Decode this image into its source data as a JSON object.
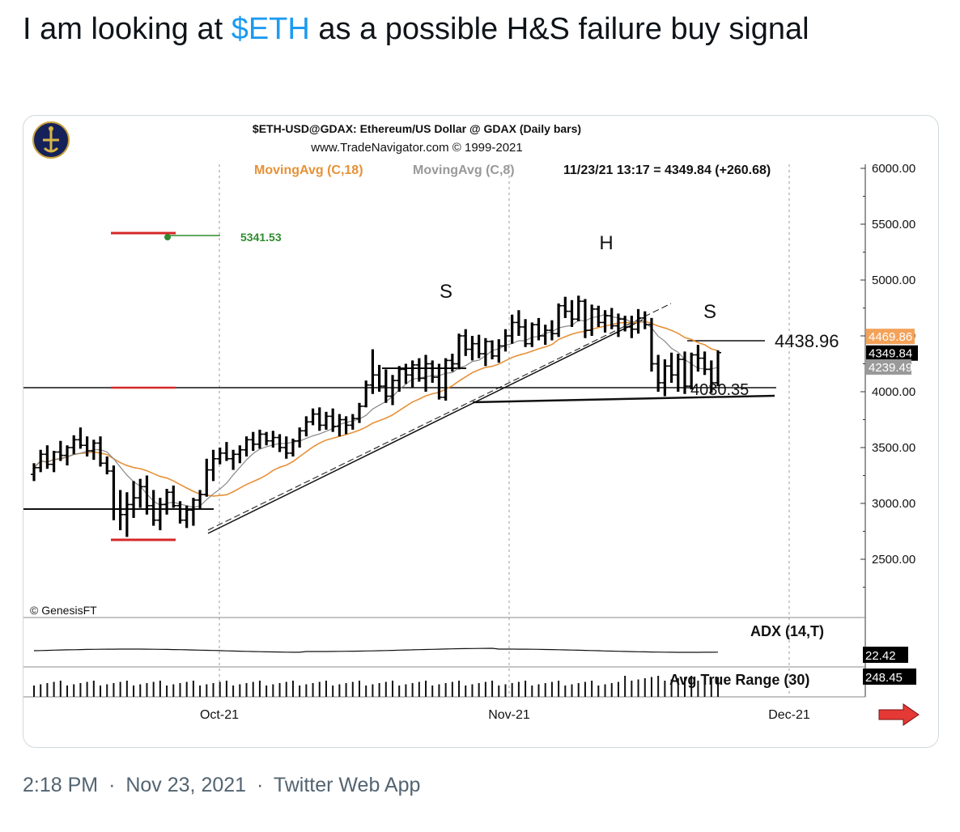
{
  "tweet": {
    "text_prefix": "I am looking at ",
    "cashtag": "$ETH",
    "text_suffix": " as a possible H&S failure buy signal",
    "time": "2:18 PM",
    "date": "Nov 23, 2021",
    "source": "Twitter Web App",
    "separator": "·"
  },
  "colors": {
    "cashtag": "#1d9bf0",
    "ma18": "#e69138",
    "ma8": "#888888",
    "level_red": "#d62828",
    "level_green": "#2e8b2e",
    "arrow": "#e53935"
  },
  "chart_data": {
    "type": "bar",
    "title": "$ETH-USD@GDAX:  Ethereum/US Dollar @ GDAX  (Daily bars)",
    "subtitle": "www.TradeNavigator.com © 1999-2021",
    "legend": {
      "ma18": "MovingAvg (C,18)",
      "ma8": "MovingAvg (C,8)",
      "last": "11/23/21 13:17 = 4349.84 (+260.68)"
    },
    "copyright": "© GenesisFT",
    "ylim": [
      2000,
      6100
    ],
    "yticks": [
      "6000.00",
      "5500.00",
      "5000.00",
      "4500.00",
      "4000.00",
      "3500.00",
      "3000.00",
      "2500.00"
    ],
    "ytick_values": [
      6000,
      5500,
      5000,
      4500,
      4000,
      3500,
      3000,
      2500
    ],
    "xticks": [
      "Oct-21",
      "Nov-21",
      "Dec-21"
    ],
    "pattern_labels": {
      "left_shoulder": "S",
      "head": "H",
      "right_shoulder": "S"
    },
    "levels": {
      "target": "5341.53",
      "neckline_high": "4438.96",
      "neckline_low": "4030.35"
    },
    "price_tags": {
      "ma18": "4469.86",
      "last": "4349.84",
      "ma8": "4239.49"
    },
    "indicators": [
      {
        "name": "ADX (14,T)",
        "value": "22.42"
      },
      {
        "name": "Avg True Range (30)",
        "value": "248.45"
      }
    ],
    "ohlc": [
      [
        3260,
        3360,
        3200,
        3320
      ],
      [
        3320,
        3480,
        3280,
        3440
      ],
      [
        3440,
        3520,
        3310,
        3350
      ],
      [
        3350,
        3470,
        3280,
        3460
      ],
      [
        3460,
        3560,
        3380,
        3430
      ],
      [
        3430,
        3520,
        3340,
        3500
      ],
      [
        3500,
        3610,
        3440,
        3570
      ],
      [
        3570,
        3680,
        3490,
        3520
      ],
      [
        3520,
        3600,
        3420,
        3470
      ],
      [
        3470,
        3570,
        3390,
        3540
      ],
      [
        3540,
        3600,
        3330,
        3360
      ],
      [
        3360,
        3420,
        3260,
        3290
      ],
      [
        3290,
        3340,
        2850,
        2950
      ],
      [
        2950,
        3120,
        2760,
        2900
      ],
      [
        2900,
        3100,
        2700,
        2990
      ],
      [
        2990,
        3200,
        2870,
        3050
      ],
      [
        3050,
        3220,
        2960,
        3150
      ],
      [
        3150,
        3250,
        2900,
        2980
      ],
      [
        2980,
        3120,
        2800,
        2850
      ],
      [
        2850,
        3050,
        2760,
        2990
      ],
      [
        2990,
        3130,
        2900,
        3100
      ],
      [
        3100,
        3160,
        2960,
        2980
      ],
      [
        2980,
        3020,
        2820,
        2850
      ],
      [
        2850,
        2980,
        2780,
        2940
      ],
      [
        2940,
        3050,
        2800,
        3030
      ],
      [
        3030,
        3120,
        2950,
        3080
      ],
      [
        3080,
        3400,
        3060,
        3300
      ],
      [
        3300,
        3480,
        3200,
        3400
      ],
      [
        3400,
        3500,
        3350,
        3450
      ],
      [
        3450,
        3550,
        3380,
        3400
      ],
      [
        3400,
        3480,
        3300,
        3440
      ],
      [
        3440,
        3520,
        3360,
        3480
      ],
      [
        3480,
        3600,
        3420,
        3570
      ],
      [
        3570,
        3640,
        3470,
        3530
      ],
      [
        3530,
        3660,
        3490,
        3620
      ],
      [
        3620,
        3640,
        3520,
        3560
      ],
      [
        3560,
        3650,
        3500,
        3590
      ],
      [
        3590,
        3620,
        3460,
        3500
      ],
      [
        3500,
        3600,
        3400,
        3450
      ],
      [
        3450,
        3580,
        3420,
        3560
      ],
      [
        3560,
        3680,
        3500,
        3650
      ],
      [
        3650,
        3780,
        3600,
        3730
      ],
      [
        3730,
        3850,
        3700,
        3800
      ],
      [
        3800,
        3860,
        3650,
        3700
      ],
      [
        3700,
        3820,
        3660,
        3780
      ],
      [
        3780,
        3850,
        3640,
        3690
      ],
      [
        3690,
        3800,
        3600,
        3750
      ],
      [
        3750,
        3780,
        3620,
        3700
      ],
      [
        3700,
        3800,
        3660,
        3760
      ],
      [
        3760,
        3900,
        3720,
        3870
      ],
      [
        3870,
        4100,
        3860,
        4060
      ],
      [
        4060,
        4380,
        3980,
        4150
      ],
      [
        4150,
        4240,
        4000,
        4050
      ],
      [
        4050,
        4200,
        3900,
        3960
      ],
      [
        3960,
        4150,
        3880,
        4100
      ],
      [
        4100,
        4230,
        4000,
        4200
      ],
      [
        4200,
        4250,
        4070,
        4150
      ],
      [
        4150,
        4280,
        4040,
        4240
      ],
      [
        4240,
        4300,
        4090,
        4120
      ],
      [
        4120,
        4330,
        4000,
        4250
      ],
      [
        4250,
        4280,
        4080,
        4130
      ],
      [
        4130,
        4250,
        3930,
        3950
      ],
      [
        3950,
        4300,
        3920,
        4280
      ],
      [
        4280,
        4340,
        4180,
        4250
      ],
      [
        4250,
        4520,
        4200,
        4500
      ],
      [
        4500,
        4560,
        4320,
        4380
      ],
      [
        4380,
        4500,
        4280,
        4430
      ],
      [
        4430,
        4510,
        4300,
        4340
      ],
      [
        4340,
        4480,
        4230,
        4450
      ],
      [
        4450,
        4460,
        4290,
        4320
      ],
      [
        4320,
        4470,
        4260,
        4410
      ],
      [
        4410,
        4560,
        4360,
        4500
      ],
      [
        4500,
        4690,
        4430,
        4620
      ],
      [
        4620,
        4730,
        4500,
        4580
      ],
      [
        4580,
        4650,
        4400,
        4430
      ],
      [
        4430,
        4620,
        4400,
        4600
      ],
      [
        4600,
        4660,
        4460,
        4500
      ],
      [
        4500,
        4600,
        4420,
        4550
      ],
      [
        4550,
        4640,
        4460,
        4520
      ],
      [
        4520,
        4790,
        4490,
        4770
      ],
      [
        4770,
        4850,
        4660,
        4720
      ],
      [
        4720,
        4820,
        4580,
        4650
      ],
      [
        4650,
        4860,
        4630,
        4810
      ],
      [
        4810,
        4830,
        4480,
        4550
      ],
      [
        4550,
        4780,
        4500,
        4740
      ],
      [
        4740,
        4770,
        4580,
        4620
      ],
      [
        4620,
        4730,
        4530,
        4680
      ],
      [
        4680,
        4750,
        4560,
        4590
      ],
      [
        4590,
        4700,
        4490,
        4650
      ],
      [
        4650,
        4680,
        4540,
        4580
      ],
      [
        4580,
        4680,
        4480,
        4560
      ],
      [
        4560,
        4740,
        4520,
        4660
      ],
      [
        4660,
        4720,
        4560,
        4600
      ],
      [
        4600,
        4660,
        4180,
        4250
      ],
      [
        4250,
        4330,
        4000,
        4080
      ],
      [
        4080,
        4290,
        3960,
        4230
      ],
      [
        4230,
        4350,
        4080,
        4150
      ],
      [
        4150,
        4340,
        4000,
        4290
      ],
      [
        4290,
        4360,
        3980,
        4050
      ],
      [
        4050,
        4350,
        4020,
        4330
      ],
      [
        4330,
        4420,
        4180,
        4300
      ],
      [
        4300,
        4360,
        4150,
        4200
      ],
      [
        4200,
        4280,
        3990,
        4080
      ],
      [
        4080,
        4370,
        4050,
        4350
      ]
    ]
  }
}
